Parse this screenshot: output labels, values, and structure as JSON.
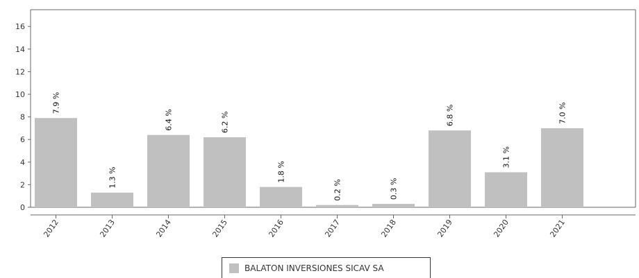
{
  "chart_data": {
    "type": "bar",
    "categories": [
      "2012",
      "2013",
      "2014",
      "2015",
      "2016",
      "2017",
      "2018",
      "2019",
      "2020",
      "2021"
    ],
    "series": [
      {
        "name": "BALATON INVERSIONES SICAV SA",
        "values": [
          7.9,
          1.3,
          6.4,
          6.2,
          1.8,
          0.2,
          0.3,
          6.8,
          3.1,
          7.0
        ],
        "data_labels": [
          "7.9 %",
          "1.3 %",
          "6.4 %",
          "6.2 %",
          "1.8 %",
          "0.2 %",
          "0.3 %",
          "6.8 %",
          "3.1 %",
          "7.0 %"
        ]
      }
    ],
    "y_ticks": [
      "0",
      "2",
      "4",
      "6",
      "8",
      "10",
      "12",
      "14",
      "16"
    ],
    "ylim": [
      0,
      16
    ],
    "grid": false,
    "legend_position": "bottom-center",
    "colors": {
      "bar": "#c0c0c0",
      "axis": "#666666"
    }
  }
}
